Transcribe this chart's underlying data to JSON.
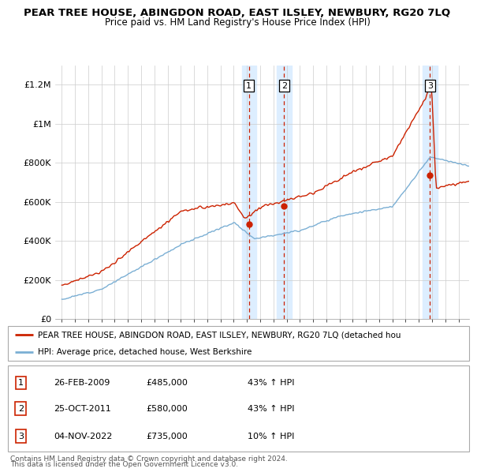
{
  "title": "PEAR TREE HOUSE, ABINGDON ROAD, EAST ILSLEY, NEWBURY, RG20 7LQ",
  "subtitle": "Price paid vs. HM Land Registry's House Price Index (HPI)",
  "legend_line1": "PEAR TREE HOUSE, ABINGDON ROAD, EAST ILSLEY, NEWBURY, RG20 7LQ (detached hou",
  "legend_line2": "HPI: Average price, detached house, West Berkshire",
  "footer1": "Contains HM Land Registry data © Crown copyright and database right 2024.",
  "footer2": "This data is licensed under the Open Government Licence v3.0.",
  "transactions": [
    {
      "num": 1,
      "date": "26-FEB-2009",
      "price": 485000,
      "pct": "43%",
      "dir": "↑",
      "ref": "HPI"
    },
    {
      "num": 2,
      "date": "25-OCT-2011",
      "price": 580000,
      "pct": "43%",
      "dir": "↑",
      "ref": "HPI"
    },
    {
      "num": 3,
      "date": "04-NOV-2022",
      "price": 735000,
      "pct": "10%",
      "dir": "↑",
      "ref": "HPI"
    }
  ],
  "sale_dates": [
    2009.15,
    2011.81,
    2022.84
  ],
  "sale_prices": [
    485000,
    580000,
    735000
  ],
  "hpi_color": "#7bafd4",
  "price_color": "#cc2200",
  "highlight_color": "#ddeeff",
  "vline_color": "#cc2200",
  "ylim": [
    0,
    1300000
  ],
  "yticks": [
    0,
    200000,
    400000,
    600000,
    800000,
    1000000,
    1200000
  ],
  "xlim": [
    1994.5,
    2025.8
  ],
  "xticks": [
    1995,
    1996,
    1997,
    1998,
    1999,
    2000,
    2001,
    2002,
    2003,
    2004,
    2005,
    2006,
    2007,
    2008,
    2009,
    2010,
    2011,
    2012,
    2013,
    2014,
    2015,
    2016,
    2017,
    2018,
    2019,
    2020,
    2021,
    2022,
    2023,
    2024,
    2025
  ]
}
